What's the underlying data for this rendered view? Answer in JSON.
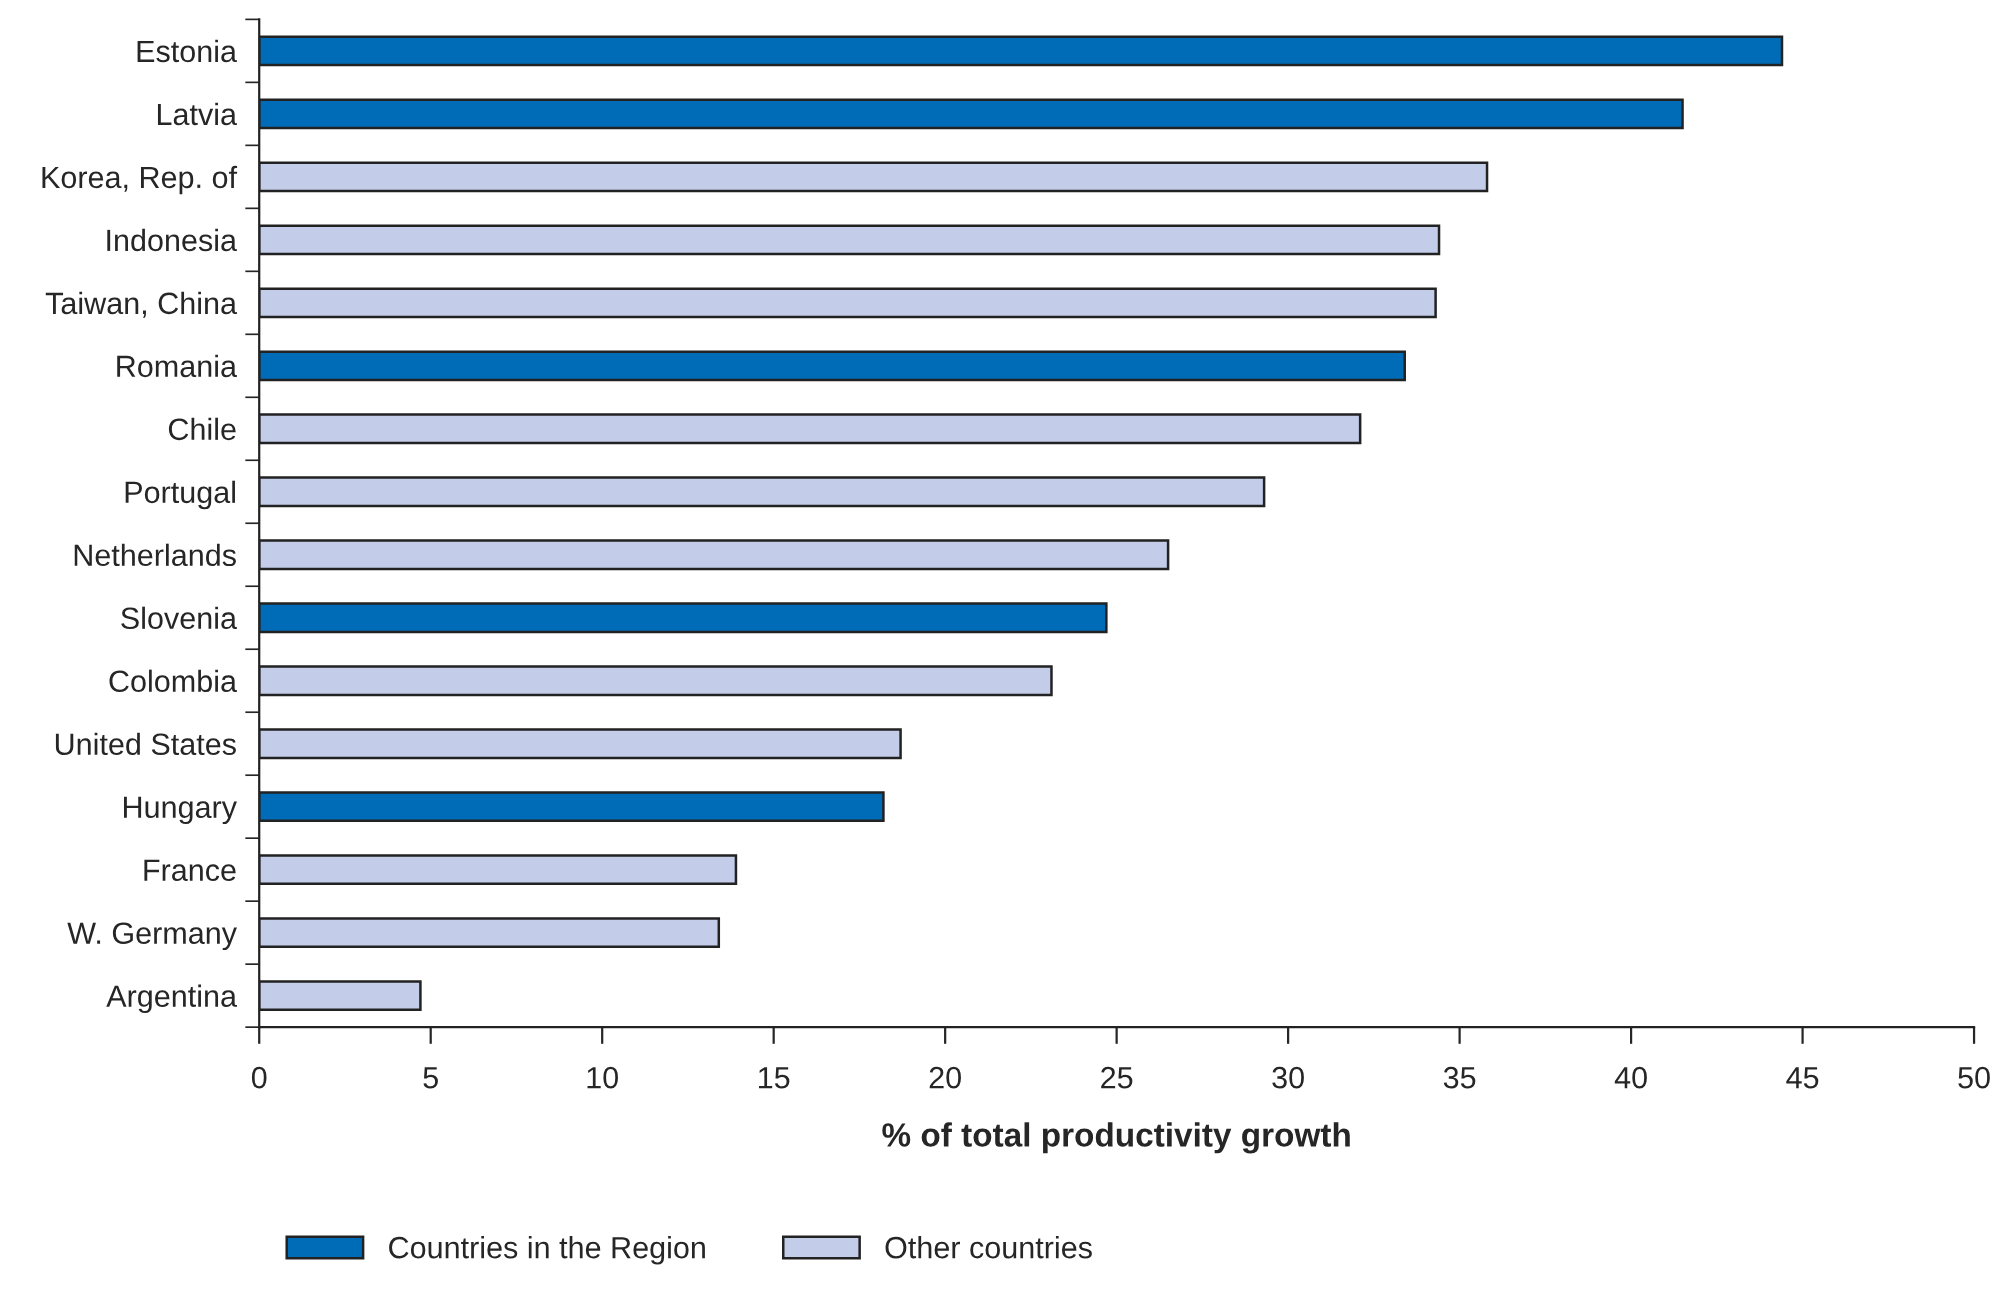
{
  "chart_data": {
    "type": "bar",
    "orientation": "horizontal",
    "xlabel": "% of total productivity growth",
    "categories": [
      "Estonia",
      "Latvia",
      "Korea, Rep. of",
      "Indonesia",
      "Taiwan, China",
      "Romania",
      "Chile",
      "Portugal",
      "Netherlands",
      "Slovenia",
      "Colombia",
      "United States",
      "Hungary",
      "France",
      "W. Germany",
      "Argentina"
    ],
    "series": [
      {
        "name": "Countries in the Region",
        "color": "#006cb7",
        "values": [
          44.4,
          41.5,
          null,
          null,
          null,
          33.4,
          null,
          null,
          null,
          24.7,
          null,
          null,
          18.2,
          null,
          null,
          null
        ]
      },
      {
        "name": "Other countries",
        "color": "#c3cdea",
        "values": [
          null,
          null,
          35.8,
          34.4,
          34.3,
          null,
          32.1,
          29.3,
          26.5,
          null,
          23.1,
          18.7,
          null,
          13.9,
          13.4,
          4.7
        ]
      }
    ],
    "xlim": [
      0,
      50
    ],
    "xticks": [
      0,
      5,
      10,
      15,
      20,
      25,
      30,
      35,
      40,
      45,
      50
    ],
    "grid": false,
    "legend": "bottom"
  }
}
